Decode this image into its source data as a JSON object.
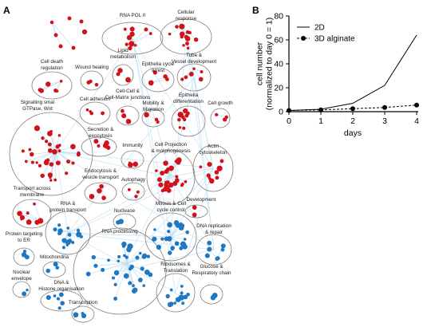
{
  "panels": {
    "a": "A",
    "b": "B"
  },
  "colors": {
    "red": "#d0121b",
    "blue": "#1f78c1",
    "edge": "#bfe0f2",
    "cluster": "#7f7f7f"
  },
  "network": {
    "clusters": [
      {
        "name": "scattered",
        "label": ""
      },
      {
        "name": "rna-pol-ii",
        "label": "RNA POL II"
      },
      {
        "name": "cellular-response",
        "label": "Cellular response"
      },
      {
        "name": "lipid-metabolism",
        "label": "Lipid metabolism"
      },
      {
        "name": "epithelia-cycle-arrest",
        "label": "Epithelia cycle arrest"
      },
      {
        "name": "tube-vessel",
        "label": "Tube & Vessel development"
      },
      {
        "name": "cell-death",
        "label": "Cell death regulation"
      },
      {
        "name": "wound-healing",
        "label": "Wound healing"
      },
      {
        "name": "cell-cell-matrix",
        "label": "Cell-Cell & Cell-Matrix junctions"
      },
      {
        "name": "mobility-migration",
        "label": "Mobility & Migration"
      },
      {
        "name": "epithelia-differentiation",
        "label": "Epithelia differentiation"
      },
      {
        "name": "cell-growth",
        "label": "Cell growth"
      },
      {
        "name": "cell-adhesion",
        "label": "Cell adhesion"
      },
      {
        "name": "signalling",
        "label": "Signalling smal GTPase, Wnt"
      },
      {
        "name": "secretion-exocytosis",
        "label": "Secretion & exocytosis"
      },
      {
        "name": "immunity",
        "label": "Immunity"
      },
      {
        "name": "cell-projection",
        "label": "Cell Projection & morphogenesis"
      },
      {
        "name": "actin-cytoskeleton",
        "label": "Actin cytoskeleton"
      },
      {
        "name": "endocytosis",
        "label": "Endocytosis & vesicle transport"
      },
      {
        "name": "autophagy",
        "label": "Autophagy"
      },
      {
        "name": "development",
        "label": "Development"
      },
      {
        "name": "transport-membrane",
        "label": "Transport across membrane"
      },
      {
        "name": "rna-protein-transport",
        "label": "RNA & protein transport"
      },
      {
        "name": "nuclease",
        "label": "Nuclease"
      },
      {
        "name": "mitosis",
        "label": "Mitosis & Cell cycle control"
      },
      {
        "name": "protein-targeting-er",
        "label": "Protein targeting to ER"
      },
      {
        "name": "rna-processing",
        "label": "RNA processing"
      },
      {
        "name": "dna-replication",
        "label": "DNA replication & repair"
      },
      {
        "name": "mitochondria",
        "label": "Mitochondria"
      },
      {
        "name": "nuclear-envelope",
        "label": "Nuclear envelope"
      },
      {
        "name": "dna-histone",
        "label": "DNA & Histone organisation"
      },
      {
        "name": "ribosomes",
        "label": "Ribosomes & Translation"
      },
      {
        "name": "glucose-respiratory",
        "label": "Glucose & Respiratory chain"
      },
      {
        "name": "transcription",
        "label": "Transcription"
      }
    ]
  },
  "chart_data": {
    "type": "line",
    "xlabel": "days",
    "ylabel": "cell number (normalized to day 0 = 1)",
    "xlim": [
      0,
      4
    ],
    "ylim": [
      0,
      80
    ],
    "xticks": [
      0,
      1,
      2,
      3,
      4
    ],
    "yticks": [
      0,
      20,
      40,
      60,
      80
    ],
    "legend_position": "top-right",
    "series": [
      {
        "name": "2D",
        "x": [
          0,
          1,
          2,
          3,
          4
        ],
        "values": [
          1,
          2,
          7,
          22,
          64
        ],
        "style": "solid line, no markers"
      },
      {
        "name": "3D alginate",
        "x": [
          0,
          1,
          2,
          3,
          4
        ],
        "values": [
          1,
          1.5,
          2.5,
          3.5,
          5.5
        ],
        "style": "dashed line, filled circle markers"
      }
    ]
  }
}
